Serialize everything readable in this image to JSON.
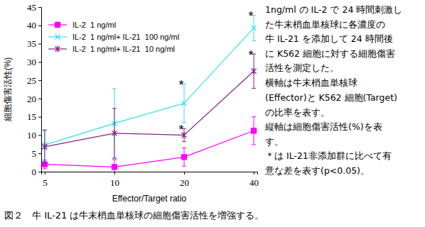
{
  "chart_data": {
    "type": "line",
    "x_label": "Effector/Target ratio",
    "y_label": "細胞傷害活性(%)",
    "categories": [
      "5",
      "10",
      "20",
      "40"
    ],
    "ylim": [
      0,
      45
    ],
    "yticks": [
      0,
      5,
      10,
      15,
      20,
      25,
      30,
      35,
      40,
      45
    ],
    "grid": false,
    "legend": "upper left",
    "series": [
      {
        "name": "IL-2  1 ng/ml",
        "color": "#ff00ff",
        "marker": "square",
        "values": [
          2.0,
          1.3,
          4.0,
          11.2
        ],
        "errors": [
          1.2,
          2.0,
          2.5,
          3.8
        ]
      },
      {
        "name": "IL-2  1 ng/ml+ IL-21  100 ng/ml",
        "color": "#33ddee",
        "marker": "x",
        "values": [
          7.3,
          13.2,
          18.7,
          39.3
        ],
        "errors": [
          4.2,
          9.5,
          5.3,
          3.5
        ]
      },
      {
        "name": "IL-2  1 ng/ml+ IL-21  10 ng/ml",
        "color": "#882288",
        "marker": "star",
        "values": [
          6.8,
          10.5,
          10.0,
          27.5
        ],
        "errors": [
          4.5,
          6.8,
          1.8,
          4.7
        ]
      }
    ],
    "annotations": [
      {
        "text": "*",
        "series": 1,
        "index": 2
      },
      {
        "text": "*",
        "series": 1,
        "index": 3
      },
      {
        "text": "*",
        "series": 2,
        "index": 2
      },
      {
        "text": "*",
        "series": 2,
        "index": 3
      }
    ],
    "notes": [
      [
        "1ng/ml の IL-2 で 24 時間刺激し",
        "た牛末梢血単核球に各濃度の",
        "牛 IL-21 を添加して 24 時間後",
        "に K562 細胞に対する細胞傷害",
        "活性を測定した。"
      ],
      [
        "横軸は牛末梢血単核球",
        "(Effector)と K562 細胞(Target)",
        "の比率を表す。",
        "縦軸は細胞傷害活性(%)を表",
        "す。",
        "＊は IL-21非添加群に比べて有",
        "意な差を表す(p<0.05)。"
      ]
    ],
    "caption": "図２　牛 IL-21 は牛末梢血単核球の細胞傷害活性を増強する。"
  }
}
